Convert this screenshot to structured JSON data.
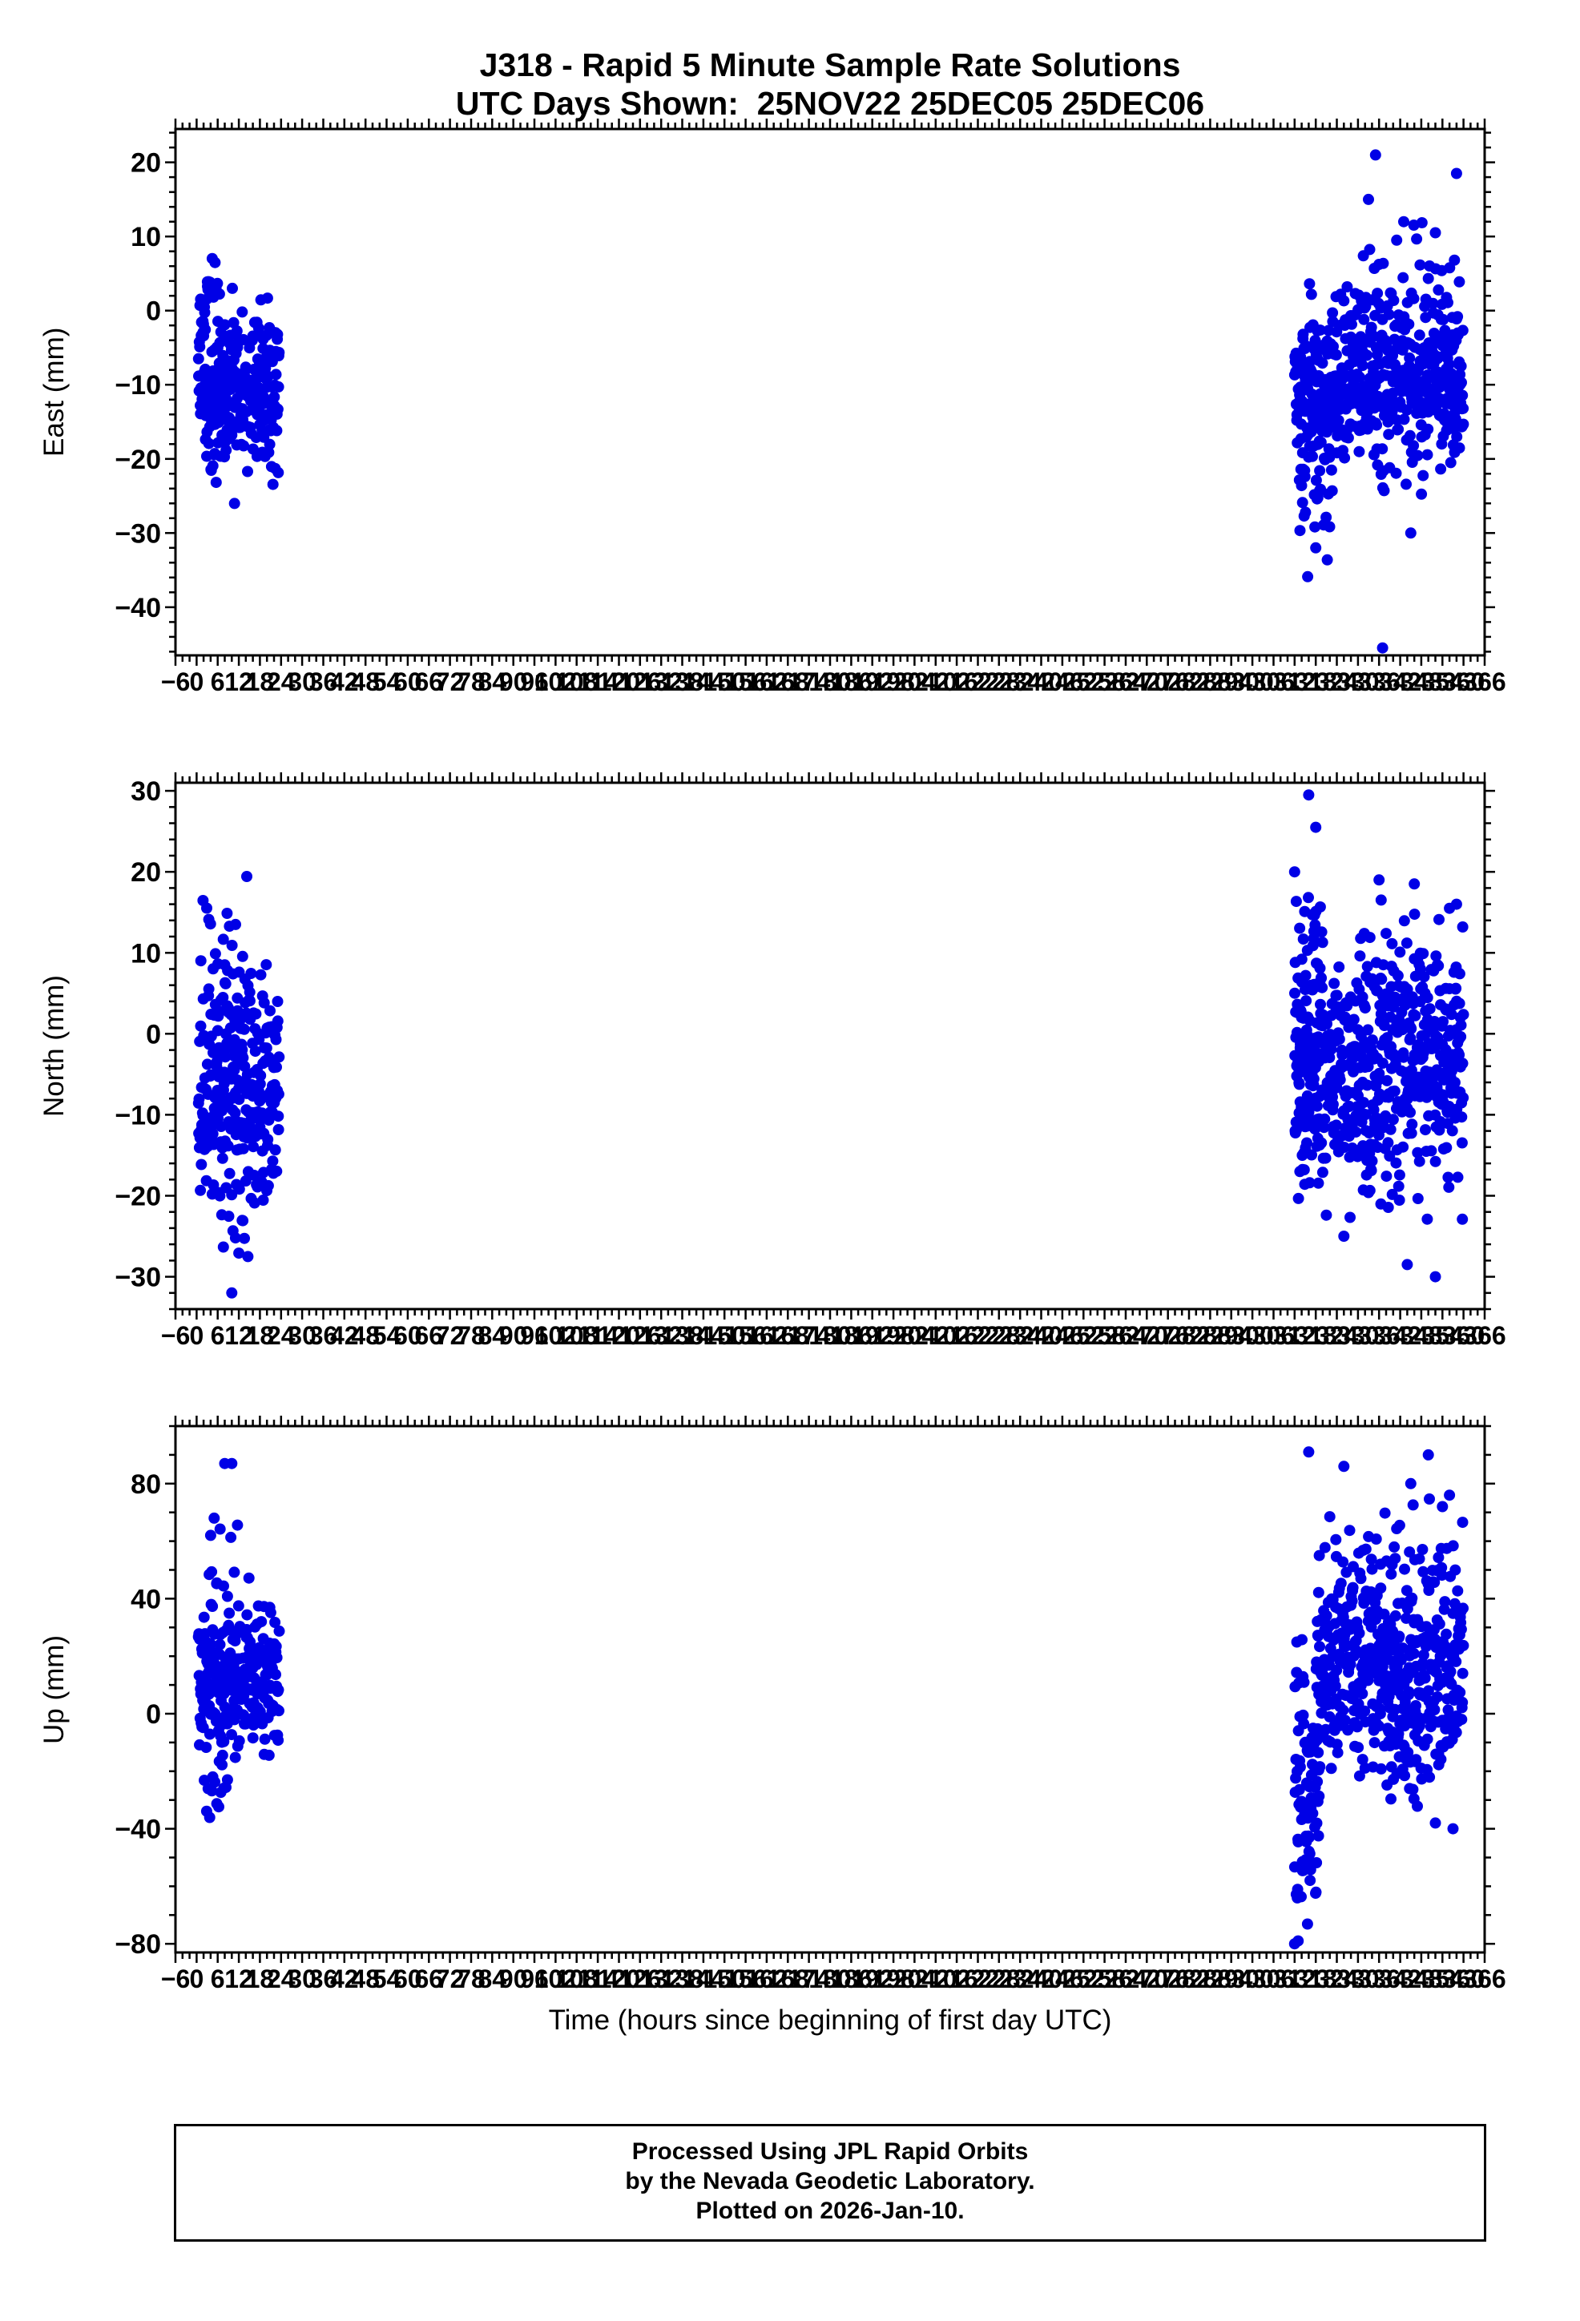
{
  "title": {
    "line1": "J318 - Rapid 5 Minute Sample Rate Solutions",
    "line2": "UTC Days Shown:  25NOV22 25DEC05 25DEC06"
  },
  "x_axis": {
    "label": "Time (hours since beginning of first day UTC)",
    "min": -6,
    "max": 366,
    "major_step": 6,
    "minor_step": 2
  },
  "footer": {
    "line1": "Processed Using JPL Rapid Orbits",
    "line2": "by the Nevada Geodetic Laboratory.",
    "line3": "Plotted on 2026-Jan-10."
  },
  "style": {
    "point_color": "#0000e6",
    "axis_color": "#000000",
    "point_radius": 7,
    "seed": 20260110
  },
  "chart_data": [
    {
      "type": "scatter",
      "ylabel": "East (mm)",
      "ylim": [
        -46.5,
        24.5
      ],
      "yticks": [
        20,
        10,
        0,
        -10,
        -20,
        -30,
        -40
      ],
      "y_minor_step": 2,
      "utc_days": [
        "25NOV22",
        "25DEC05",
        "25DEC06"
      ],
      "day_hour_ranges": [
        [
          0,
          24
        ],
        [
          312,
          336
        ],
        [
          336,
          360
        ]
      ],
      "clusters": [
        {
          "x0": 0.5,
          "x1": 23.5,
          "n": 265,
          "mean": -11,
          "std": 6,
          "min": -28,
          "max": 5
        },
        {
          "x0": 1,
          "x1": 7,
          "n": 18,
          "mean": 2,
          "std": 3,
          "min": -4,
          "max": 8
        },
        {
          "x0": 312,
          "x1": 360,
          "n": 520,
          "mean": -10,
          "std": 5.5,
          "min": -26,
          "max": 4
        },
        {
          "x0": 313,
          "x1": 323,
          "n": 45,
          "mean": -21,
          "std": 8,
          "min": -36,
          "max": -4
        },
        {
          "x0": 326,
          "x1": 360,
          "n": 45,
          "mean": 1,
          "std": 4.5,
          "min": -5,
          "max": 13
        }
      ],
      "outliers": [
        [
          337,
          -45.5
        ],
        [
          335,
          21
        ],
        [
          358,
          18.5
        ],
        [
          333,
          15
        ],
        [
          352,
          10.5
        ],
        [
          341,
          9.5
        ],
        [
          318,
          -32
        ],
        [
          345,
          -30
        ],
        [
          343,
          12
        ]
      ]
    },
    {
      "type": "scatter",
      "ylabel": "North (mm)",
      "ylim": [
        -34,
        31
      ],
      "yticks": [
        30,
        20,
        10,
        0,
        -10,
        -20,
        -30
      ],
      "y_minor_step": 2,
      "utc_days": [
        "25NOV22",
        "25DEC05",
        "25DEC06"
      ],
      "day_hour_ranges": [
        [
          0,
          24
        ],
        [
          312,
          336
        ],
        [
          336,
          360
        ]
      ],
      "clusters": [
        {
          "x0": 0.5,
          "x1": 23.5,
          "n": 265,
          "mean": -7,
          "std": 7,
          "min": -24,
          "max": 11
        },
        {
          "x0": 1,
          "x1": 16,
          "n": 22,
          "mean": 9,
          "std": 5,
          "min": 3,
          "max": 19.5
        },
        {
          "x0": 6,
          "x1": 17,
          "n": 12,
          "mean": -24,
          "std": 4,
          "min": -29,
          "max": -18
        },
        {
          "x0": 312,
          "x1": 360,
          "n": 520,
          "mean": -5,
          "std": 7.5,
          "min": -24,
          "max": 12
        },
        {
          "x0": 312,
          "x1": 320,
          "n": 60,
          "mean": 4,
          "std": 9,
          "min": -12,
          "max": 26
        },
        {
          "x0": 330,
          "x1": 360,
          "n": 40,
          "mean": 8,
          "std": 5,
          "min": 1,
          "max": 17
        }
      ],
      "outliers": [
        [
          10,
          -32
        ],
        [
          316,
          29.5
        ],
        [
          318,
          25.5
        ],
        [
          344,
          -28.5
        ],
        [
          352,
          -30
        ],
        [
          326,
          -25
        ],
        [
          358,
          16
        ],
        [
          346,
          18.5
        ],
        [
          336,
          19
        ],
        [
          312,
          20
        ],
        [
          356,
          15.5
        ]
      ]
    },
    {
      "type": "scatter",
      "ylabel": "Up (mm)",
      "ylim": [
        -83,
        100
      ],
      "yticks": [
        80,
        40,
        0,
        -40,
        -80
      ],
      "y_minor_step": 10,
      "utc_days": [
        "25NOV22",
        "25DEC05",
        "25DEC06"
      ],
      "day_hour_ranges": [
        [
          0,
          24
        ],
        [
          312,
          336
        ],
        [
          336,
          360
        ]
      ],
      "clusters": [
        {
          "x0": 0.5,
          "x1": 23.5,
          "n": 250,
          "mean": 13,
          "std": 13,
          "min": -20,
          "max": 48
        },
        {
          "x0": 2,
          "x1": 9,
          "n": 14,
          "mean": -27,
          "std": 6,
          "min": -37,
          "max": -14
        },
        {
          "x0": 3,
          "x1": 12,
          "n": 9,
          "mean": 50,
          "std": 8,
          "min": 40,
          "max": 66
        },
        {
          "x0": 318,
          "x1": 360,
          "n": 440,
          "mean": 17,
          "std": 18,
          "min": -25,
          "max": 60
        },
        {
          "x0": 312,
          "x1": 319,
          "n": 85,
          "mean": -30,
          "std": 27,
          "min": -81,
          "max": 30
        },
        {
          "x0": 338,
          "x1": 347,
          "n": 28,
          "mean": -15,
          "std": 13,
          "min": -40,
          "max": 5
        },
        {
          "x0": 320,
          "x1": 360,
          "n": 30,
          "mean": 55,
          "std": 12,
          "min": 42,
          "max": 78
        }
      ],
      "outliers": [
        [
          8,
          87
        ],
        [
          10,
          87
        ],
        [
          5,
          68
        ],
        [
          4,
          62
        ],
        [
          316,
          91
        ],
        [
          350,
          90
        ],
        [
          345,
          80
        ],
        [
          326,
          86
        ],
        [
          356,
          76
        ],
        [
          354,
          72
        ],
        [
          312,
          -80
        ],
        [
          313,
          -79
        ],
        [
          357,
          -40
        ],
        [
          352,
          -38
        ]
      ]
    }
  ]
}
